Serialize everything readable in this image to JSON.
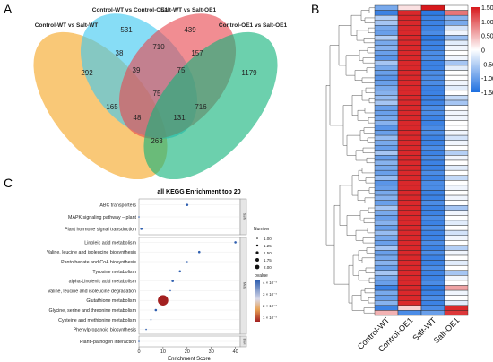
{
  "panels": {
    "a": {
      "letter": "A"
    },
    "b": {
      "letter": "B"
    },
    "c": {
      "letter": "C"
    }
  },
  "colors": {
    "orange": "#f5a623",
    "cyan": "#3dc8f0",
    "red": "#e8474f",
    "green": "#12b37a",
    "heat_high": "#d7191c",
    "heat_mid": "#ffffff",
    "heat_low": "#1e6fe0",
    "dot": "#8b1a1a"
  },
  "chart_data": [
    {
      "type": "venn",
      "sets": [
        "Control-WT vs Salt-WT",
        "Control-WT vs Control-OE1",
        "Salt-WT vs Salt-OE1",
        "Control-OE1 vs Salt-OE1"
      ],
      "region_counts": [
        "531",
        "439",
        "292",
        "1179",
        "710",
        "38",
        "157",
        "39",
        "75",
        "165",
        "75",
        "716",
        "48",
        "131",
        "263"
      ]
    },
    {
      "type": "heatmap",
      "columns": [
        "Control-WT",
        "Control-OE1",
        "Salt-WT",
        "Salt-OE1"
      ],
      "colorbar_ticks": [
        "1.50",
        "1.00",
        "0.50",
        "0",
        "-0.50",
        "-1.00",
        "-1.50"
      ],
      "vmin": -1.5,
      "vmax": 1.5,
      "rows": [
        [
          -0.9,
          0.2,
          1.5,
          0.0
        ],
        [
          -1.3,
          1.4,
          -1.4,
          0.9
        ],
        [
          -0.5,
          1.4,
          -1.3,
          -0.8
        ],
        [
          -0.6,
          1.4,
          -1.3,
          -0.9
        ],
        [
          -0.9,
          1.4,
          -1.3,
          -0.3
        ],
        [
          -1.0,
          1.4,
          -1.2,
          -0.1
        ],
        [
          -0.5,
          1.4,
          -1.4,
          -0.7
        ],
        [
          -0.9,
          1.4,
          -1.3,
          -0.2
        ],
        [
          -0.8,
          1.4,
          -1.3,
          -0.1
        ],
        [
          -1.0,
          1.4,
          -1.2,
          0.0
        ],
        [
          -1.1,
          1.4,
          -1.2,
          -0.1
        ],
        [
          -0.6,
          1.4,
          -1.3,
          -0.6
        ],
        [
          -0.9,
          1.4,
          -1.3,
          -0.2
        ],
        [
          -1.0,
          1.4,
          -1.2,
          0.0
        ],
        [
          -1.1,
          1.4,
          -1.2,
          0.0
        ],
        [
          -1.0,
          1.4,
          -1.2,
          -0.1
        ],
        [
          -0.9,
          1.4,
          -1.3,
          -0.2
        ],
        [
          -0.8,
          1.4,
          -1.3,
          0.0
        ],
        [
          -0.7,
          1.4,
          -1.3,
          -0.4
        ],
        [
          -0.6,
          1.4,
          -1.3,
          -0.6
        ],
        [
          -1.0,
          1.4,
          -1.2,
          0.0
        ],
        [
          -1.0,
          1.4,
          -1.2,
          -0.1
        ],
        [
          -0.9,
          1.4,
          -1.3,
          -0.1
        ],
        [
          -0.8,
          1.4,
          -1.3,
          0.0
        ],
        [
          -1.1,
          1.4,
          -1.2,
          0.0
        ],
        [
          -1.0,
          1.4,
          -1.2,
          -0.1
        ],
        [
          -0.7,
          1.4,
          -1.3,
          -0.3
        ],
        [
          -0.9,
          1.4,
          -1.3,
          -0.1
        ],
        [
          -1.0,
          1.4,
          -1.2,
          0.0
        ],
        [
          -0.6,
          1.4,
          -1.3,
          -0.5
        ],
        [
          -1.0,
          1.4,
          -1.2,
          -0.1
        ],
        [
          -0.8,
          1.4,
          -1.3,
          0.0
        ],
        [
          -0.9,
          1.4,
          -1.3,
          -0.2
        ],
        [
          -1.0,
          1.4,
          -1.2,
          0.0
        ],
        [
          -0.7,
          1.4,
          -1.3,
          -0.4
        ],
        [
          -1.1,
          1.4,
          -1.2,
          0.0
        ],
        [
          -1.0,
          1.4,
          -1.2,
          -0.1
        ],
        [
          -0.9,
          1.4,
          -1.3,
          0.0
        ],
        [
          -0.8,
          1.4,
          -1.3,
          -0.1
        ],
        [
          -1.0,
          1.4,
          -1.2,
          0.0
        ],
        [
          -0.6,
          1.4,
          -1.3,
          -0.6
        ],
        [
          -0.9,
          1.4,
          -1.3,
          -0.1
        ],
        [
          -1.0,
          1.4,
          -1.2,
          0.0
        ],
        [
          -0.8,
          1.4,
          -1.3,
          -0.2
        ],
        [
          -1.0,
          1.4,
          -1.2,
          0.0
        ],
        [
          -0.7,
          1.4,
          -1.3,
          -0.3
        ],
        [
          -0.9,
          1.4,
          -1.3,
          -0.1
        ],
        [
          -1.0,
          1.4,
          -1.2,
          0.0
        ],
        [
          -0.6,
          1.4,
          -1.3,
          -0.5
        ],
        [
          -1.0,
          1.4,
          -1.2,
          -0.1
        ],
        [
          -0.9,
          1.4,
          -1.3,
          0.0
        ],
        [
          -0.8,
          1.4,
          -1.3,
          -0.2
        ],
        [
          -1.0,
          1.4,
          -1.2,
          0.0
        ],
        [
          -0.6,
          1.4,
          -1.3,
          -0.6
        ],
        [
          -0.9,
          1.4,
          -1.3,
          -0.1
        ],
        [
          -1.0,
          1.4,
          -1.2,
          0.0
        ],
        [
          -1.3,
          1.4,
          -1.4,
          0.6
        ],
        [
          -0.9,
          1.4,
          -1.3,
          -0.1
        ],
        [
          -1.0,
          1.4,
          -1.2,
          0.0
        ],
        [
          -0.8,
          1.4,
          -1.3,
          -0.2
        ],
        [
          -1.3,
          0.3,
          -1.2,
          1.4
        ],
        [
          0.5,
          -1.2,
          -1.0,
          1.3
        ]
      ]
    },
    {
      "type": "scatter",
      "title": "all KEGG Enrichment top 20",
      "xlabel": "Enrichment Score",
      "x_ticks": [
        0,
        10,
        20,
        30,
        40
      ],
      "xlim": [
        0,
        42
      ],
      "groups": [
        {
          "label": "SurM",
          "terms": [
            {
              "name": "ABC transporters",
              "x": 20,
              "size": 1.1,
              "pvalue": 4
            },
            {
              "name": "MAPK signaling pathway – plant",
              "x": 0,
              "size": 1.0,
              "pvalue": 4
            },
            {
              "name": "Plant hormone signal transduction",
              "x": 1,
              "size": 1.1,
              "pvalue": 4
            }
          ]
        },
        {
          "label": "Meta",
          "terms": [
            {
              "name": "Linoleic acid metabolism",
              "x": 40,
              "size": 1.1,
              "pvalue": 4
            },
            {
              "name": "Valine, leucine and isoleucine biosynthesis",
              "x": 25,
              "size": 1.1,
              "pvalue": 4
            },
            {
              "name": "Pantothenate and CoA biosynthesis",
              "x": 20,
              "size": 1.0,
              "pvalue": 4
            },
            {
              "name": "Tyrosine metabolism",
              "x": 17,
              "size": 1.1,
              "pvalue": 4
            },
            {
              "name": "alpha-Linolenic acid metabolism",
              "x": 14,
              "size": 1.1,
              "pvalue": 4
            },
            {
              "name": "Valine, leucine and isoleucine degradation",
              "x": 13,
              "size": 1.0,
              "pvalue": 4
            },
            {
              "name": "Glutathione metabolism",
              "x": 10,
              "size": 2.0,
              "pvalue": 1
            },
            {
              "name": "Glycine, serine and threonine metabolism",
              "x": 7,
              "size": 1.1,
              "pvalue": 4
            },
            {
              "name": "Cysteine and methionine metabolism",
              "x": 5,
              "size": 1.0,
              "pvalue": 4
            },
            {
              "name": "Phenylpropanoid biosynthesis",
              "x": 3,
              "size": 1.0,
              "pvalue": 4
            }
          ]
        },
        {
          "label": "Envi",
          "terms": [
            {
              "name": "Plant–pathogen interaction",
              "x": 0,
              "size": 1.0,
              "pvalue": 4
            }
          ]
        }
      ],
      "size_legend": {
        "title": "Number",
        "values": [
          "1.00",
          "1.25",
          "1.50",
          "1.75",
          "2.00"
        ]
      },
      "color_legend": {
        "title": "pvalue",
        "ticks": [
          "4 × 10⁻⁷",
          "3 × 10⁻⁷",
          "2 × 10⁻⁷",
          "1 × 10⁻⁷"
        ]
      }
    }
  ]
}
